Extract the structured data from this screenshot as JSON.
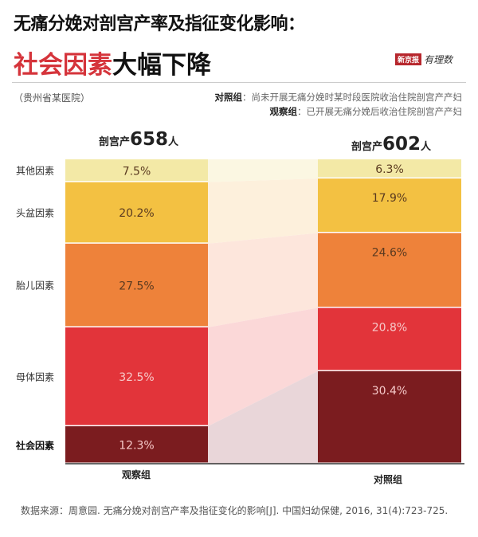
{
  "header": {
    "title_line1": "无痛分娩对剖宫产率及指征变化影响：",
    "title_line2_highlight": "社会因素",
    "title_line2_rest": "大幅下降",
    "logo_text": "新京报",
    "logo_sub": "有理数"
  },
  "region": "（贵州省某医院）",
  "legend": [
    {
      "term": "对照组",
      "desc": "：尚未开展无痛分娩时某时段医院收治住院剖宫产产妇"
    },
    {
      "term": "观察组",
      "desc": "：已开展无痛分娩后收治住院剖宫产产妇"
    }
  ],
  "source": "数据来源：周意园. 无痛分娩对剖宫产率及指征变化的影响[J]. 中国妇幼保健, 2016, 31(4):723-725.",
  "chart_data": {
    "type": "stacked-bar",
    "categories": [
      "其他因素",
      "头盆因素",
      "胎儿因素",
      "母体因素",
      "社会因素"
    ],
    "category_colors": [
      "#f3e9a6",
      "#f3c142",
      "#ee823a",
      "#e2343a",
      "#7b1c1f"
    ],
    "groups": [
      {
        "name": "观察组",
        "total_prefix": "剖宫产",
        "total": "658",
        "total_unit": "人",
        "values": [
          7.5,
          20.2,
          27.5,
          32.5,
          12.3
        ],
        "labels": [
          "7.5%",
          "20.2%",
          "27.5%",
          "32.5%",
          "12.3%"
        ]
      },
      {
        "name": "对照组",
        "total_prefix": "剖宫产",
        "total": "602",
        "total_unit": "人",
        "values": [
          6.3,
          17.9,
          24.6,
          20.8,
          30.4
        ],
        "labels": [
          "6.3%",
          "17.9%",
          "24.6%",
          "20.8%",
          "30.4%"
        ]
      }
    ],
    "unit": "%"
  }
}
